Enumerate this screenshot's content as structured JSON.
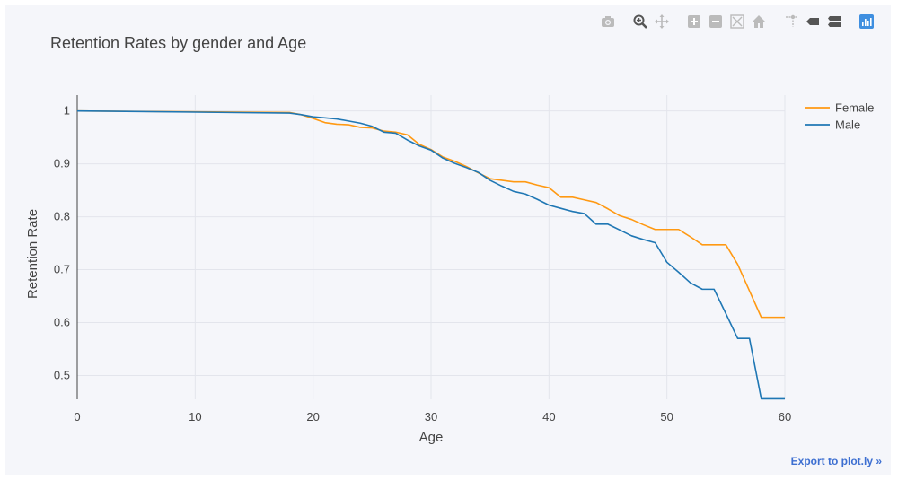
{
  "modebar": {
    "icons": [
      "camera-icon",
      "zoom-icon",
      "pan-icon",
      "zoom-in-icon",
      "zoom-out-icon",
      "autoscale-icon",
      "home-icon",
      "spike-lines-icon",
      "hover-closest-icon",
      "hover-compare-icon",
      "plotly-logo-icon"
    ],
    "active_color": "#555555",
    "inactive_color": "#bbbbbb",
    "logo_color": "#3f8fe0"
  },
  "export": {
    "label": "Export to plot.ly »",
    "color": "#3d6fd1"
  },
  "chart_data": {
    "type": "line",
    "title": "Retention Rates by gender and Age",
    "xlabel": "Age",
    "ylabel": "Retention Rate",
    "xlim": [
      0,
      60
    ],
    "ylim": [
      0.455,
      1.03
    ],
    "xticks": [
      0,
      10,
      20,
      30,
      40,
      50,
      60
    ],
    "yticks": [
      0.5,
      0.6,
      0.7,
      0.8,
      0.9,
      1
    ],
    "grid": true,
    "legend_position": "top-right",
    "series": [
      {
        "name": "Female",
        "color": "#ff9912",
        "x": [
          0,
          18,
          19,
          20,
          21,
          22,
          23,
          24,
          25,
          26,
          27,
          28,
          29,
          30,
          31,
          32,
          33,
          34,
          35,
          36,
          37,
          38,
          39,
          40,
          41,
          42,
          43,
          44,
          45,
          46,
          47,
          48,
          49,
          50,
          51,
          52,
          53,
          54,
          55,
          56,
          57,
          58,
          59,
          60
        ],
        "y": [
          1.0,
          0.997,
          0.993,
          0.986,
          0.978,
          0.975,
          0.974,
          0.969,
          0.968,
          0.962,
          0.96,
          0.955,
          0.937,
          0.927,
          0.913,
          0.905,
          0.895,
          0.883,
          0.872,
          0.869,
          0.866,
          0.866,
          0.86,
          0.855,
          0.837,
          0.837,
          0.832,
          0.827,
          0.815,
          0.802,
          0.795,
          0.785,
          0.776,
          0.776,
          0.776,
          0.762,
          0.747,
          0.747,
          0.747,
          0.71,
          0.66,
          0.61,
          0.61,
          0.61
        ]
      },
      {
        "name": "Male",
        "color": "#1f77b4",
        "x": [
          0,
          18,
          19,
          20,
          21,
          22,
          23,
          24,
          25,
          26,
          27,
          28,
          29,
          30,
          31,
          32,
          33,
          34,
          35,
          36,
          37,
          38,
          39,
          40,
          41,
          42,
          43,
          44,
          45,
          46,
          47,
          48,
          49,
          50,
          51,
          52,
          53,
          54,
          55,
          56,
          57,
          58,
          59,
          60
        ],
        "y": [
          1.0,
          0.996,
          0.993,
          0.989,
          0.987,
          0.985,
          0.981,
          0.977,
          0.971,
          0.96,
          0.958,
          0.945,
          0.934,
          0.926,
          0.911,
          0.901,
          0.893,
          0.884,
          0.869,
          0.858,
          0.848,
          0.843,
          0.833,
          0.822,
          0.816,
          0.81,
          0.806,
          0.786,
          0.786,
          0.775,
          0.764,
          0.757,
          0.751,
          0.714,
          0.695,
          0.675,
          0.663,
          0.663,
          0.617,
          0.57,
          0.57,
          0.456,
          0.456,
          0.456
        ]
      }
    ]
  }
}
